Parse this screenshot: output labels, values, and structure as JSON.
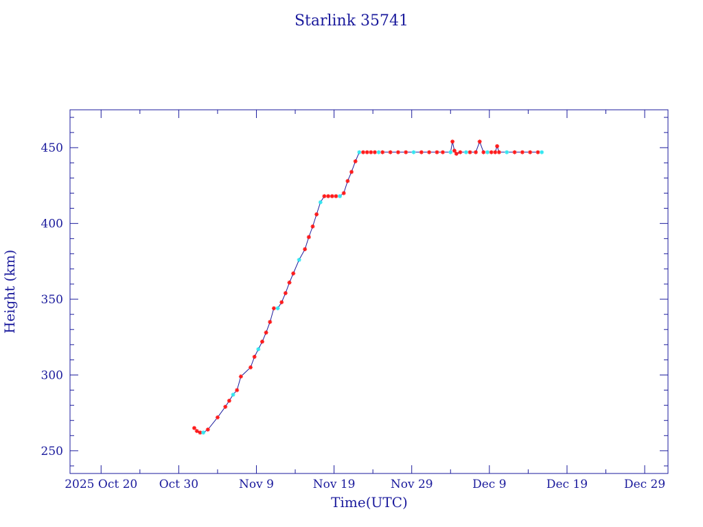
{
  "chart_data": {
    "type": "line",
    "title": "Starlink 35741",
    "xlabel": "Time(UTC)",
    "ylabel": "Height (km)",
    "x_unit": "date",
    "xlim": [
      "2025-10-16",
      "2026-01-01"
    ],
    "ylim": [
      235,
      475
    ],
    "x_ticks": [
      {
        "date": "2025-10-20",
        "label": "2025 Oct 20"
      },
      {
        "date": "2025-10-30",
        "label": "Oct 30"
      },
      {
        "date": "2025-11-09",
        "label": "Nov  9"
      },
      {
        "date": "2025-11-19",
        "label": "Nov 19"
      },
      {
        "date": "2025-11-29",
        "label": "Nov 29"
      },
      {
        "date": "2025-12-09",
        "label": "Dec  9"
      },
      {
        "date": "2025-12-19",
        "label": "Dec 19"
      },
      {
        "date": "2025-12-29",
        "label": "Dec 29"
      }
    ],
    "y_ticks": [
      250,
      300,
      350,
      400,
      450
    ],
    "grid": false,
    "colors": {
      "axis": "#1a1a9c",
      "line": "#1a1a9c",
      "marker_primary": "#ff1a1a",
      "marker_secondary": "#33e6f0"
    },
    "series": [
      {
        "x": [
          "2025-11-01T00",
          "2025-11-01T08",
          "2025-11-01T18",
          "2025-11-02T04",
          "2025-11-02T18",
          "2025-11-04T00",
          "2025-11-05T00",
          "2025-11-05T12",
          "2025-11-06T00",
          "2025-11-06T12",
          "2025-11-07T00",
          "2025-11-08T06",
          "2025-11-08T18",
          "2025-11-09T06",
          "2025-11-09T18",
          "2025-11-10T06",
          "2025-11-10T18",
          "2025-11-11T06",
          "2025-11-11T18",
          "2025-11-12T06",
          "2025-11-12T18",
          "2025-11-13T06",
          "2025-11-13T18",
          "2025-11-14T12",
          "2025-11-15T06",
          "2025-11-15T18",
          "2025-11-16T06",
          "2025-11-16T18",
          "2025-11-17T06",
          "2025-11-17T18",
          "2025-11-18T06",
          "2025-11-18T18",
          "2025-11-19T06",
          "2025-11-19T18",
          "2025-11-20T06",
          "2025-11-20T18",
          "2025-11-21T06",
          "2025-11-21T18",
          "2025-11-22T06",
          "2025-11-22T18",
          "2025-11-23T06",
          "2025-11-23T18",
          "2025-11-24T06",
          "2025-11-24T18",
          "2025-11-25T06",
          "2025-11-26T06",
          "2025-11-27T06",
          "2025-11-28T06",
          "2025-11-29T06",
          "2025-11-30T06",
          "2025-12-01T06",
          "2025-12-02T06",
          "2025-12-03T00",
          "2025-12-04T00",
          "2025-12-04T06",
          "2025-12-04T12",
          "2025-12-04T18",
          "2025-12-05T06",
          "2025-12-06T00",
          "2025-12-06T12",
          "2025-12-07T06",
          "2025-12-07T18",
          "2025-12-08T06",
          "2025-12-08T18",
          "2025-12-09T06",
          "2025-12-09T18",
          "2025-12-10T00",
          "2025-12-10T06",
          "2025-12-11T06",
          "2025-12-12T06",
          "2025-12-13T06",
          "2025-12-14T06",
          "2025-12-15T06",
          "2025-12-15T18"
        ],
        "y": [
          265,
          263,
          262,
          262,
          264,
          272,
          279,
          283,
          287,
          290,
          299,
          305,
          312,
          317,
          322,
          328,
          335,
          344,
          344,
          348,
          354,
          361,
          367,
          376,
          383,
          391,
          398,
          406,
          414,
          418,
          418,
          418,
          418,
          418,
          420,
          428,
          434,
          441,
          447,
          447,
          447,
          447,
          447,
          447,
          447,
          447,
          447,
          447,
          447,
          447,
          447,
          447,
          447,
          447,
          454,
          448,
          446,
          447,
          447,
          447,
          447,
          454,
          447,
          447,
          447,
          447,
          451,
          447,
          447,
          447,
          447,
          447,
          447,
          447
        ]
      }
    ]
  }
}
